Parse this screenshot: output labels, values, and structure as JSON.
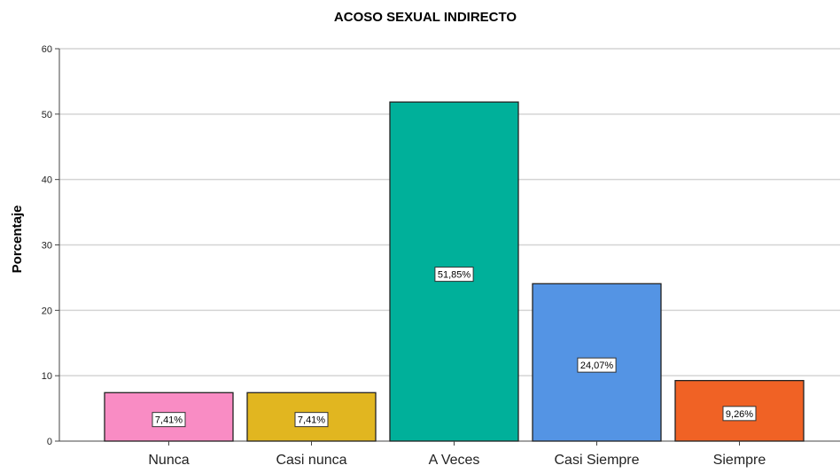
{
  "chart_data": {
    "type": "bar",
    "title": "ACOSO SEXUAL INDIRECTO",
    "xlabel": "",
    "ylabel": "Porcentaje",
    "ylim": [
      0,
      60
    ],
    "yticks": [
      "0",
      "10",
      "20",
      "30",
      "40",
      "50",
      "60"
    ],
    "grid": true,
    "categories": [
      "Nunca",
      "Casi nunca",
      "A Veces",
      "Casi Siempre",
      "Siempre"
    ],
    "values": [
      7.41,
      7.41,
      51.85,
      24.07,
      9.26
    ],
    "data_labels": [
      "7,41%",
      "7,41%",
      "51,85%",
      "24,07%",
      "9,26%"
    ],
    "colors": [
      "#f98cc4",
      "#e1b620",
      "#00b09a",
      "#5494e4",
      "#f06225"
    ]
  }
}
